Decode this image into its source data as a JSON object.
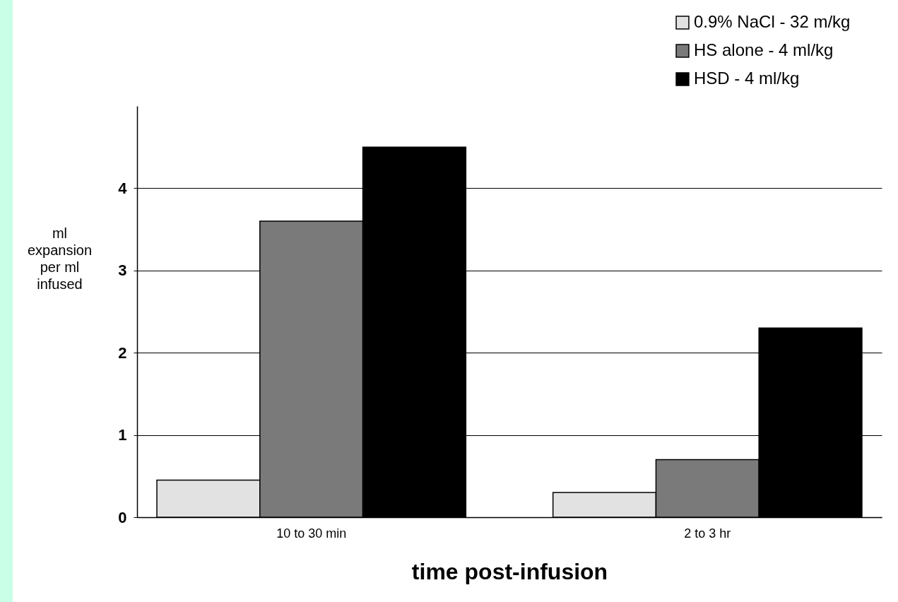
{
  "chart_data": {
    "type": "bar",
    "xlabel": "time post-infusion",
    "ylabel": "ml expansion per ml infused",
    "categories": [
      "10 to 30 min",
      "2 to 3 hr"
    ],
    "series": [
      {
        "name": "0.9% NaCl - 32 m/kg",
        "color": "#e2e2e2",
        "values": [
          0.45,
          0.3
        ]
      },
      {
        "name": "HS alone - 4 ml/kg",
        "color": "#7a7a7a",
        "values": [
          3.6,
          0.7
        ]
      },
      {
        "name": "HSD - 4 ml/kg",
        "color": "#000000",
        "values": [
          4.5,
          2.3
        ]
      }
    ],
    "ylim": [
      0,
      5
    ],
    "yticks": [
      0,
      1,
      2,
      3,
      4
    ],
    "grid": "y",
    "legend": "top right"
  }
}
